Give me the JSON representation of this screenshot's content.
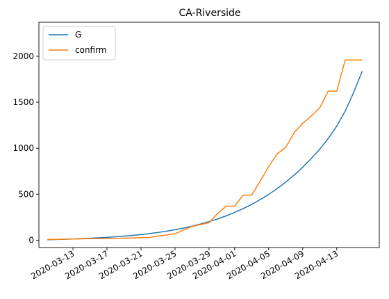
{
  "chart_data": {
    "type": "line",
    "title": "CA-Riverside",
    "xlabel": "",
    "ylabel": "",
    "x_start": "2020-03-10",
    "x_ticks": [
      "2020-03-13",
      "2020-03-17",
      "2020-03-21",
      "2020-03-25",
      "2020-03-29",
      "2020-04-01",
      "2020-04-05",
      "2020-04-09",
      "2020-04-13"
    ],
    "y_ticks": [
      0,
      500,
      1000,
      1500,
      2000
    ],
    "ylim": [
      -80,
      2370
    ],
    "xlim": [
      "2020-03-09",
      "2020-04-18"
    ],
    "grid": false,
    "legend_position": "top-left",
    "series": [
      {
        "name": "G",
        "color": "#1f77b4",
        "x": [
          "2020-03-10",
          "2020-03-11",
          "2020-03-12",
          "2020-03-13",
          "2020-03-14",
          "2020-03-15",
          "2020-03-16",
          "2020-03-17",
          "2020-03-18",
          "2020-03-19",
          "2020-03-20",
          "2020-03-21",
          "2020-03-22",
          "2020-03-23",
          "2020-03-24",
          "2020-03-25",
          "2020-03-26",
          "2020-03-27",
          "2020-03-28",
          "2020-03-29",
          "2020-03-30",
          "2020-03-31",
          "2020-04-01",
          "2020-04-02",
          "2020-04-03",
          "2020-04-04",
          "2020-04-05",
          "2020-04-06",
          "2020-04-07",
          "2020-04-08",
          "2020-04-09",
          "2020-04-10",
          "2020-04-11",
          "2020-04-12",
          "2020-04-13",
          "2020-04-14",
          "2020-04-15",
          "2020-04-16"
        ],
        "values": [
          5,
          7,
          10,
          13,
          17,
          21,
          26,
          31,
          37,
          44,
          52,
          61,
          72,
          84,
          98,
          114,
          132,
          153,
          176,
          202,
          231,
          264,
          302,
          343,
          389,
          441,
          498,
          561,
          631,
          708,
          793,
          887,
          990,
          1106,
          1240,
          1404,
          1609,
          1839
        ]
      },
      {
        "name": "confirm",
        "color": "#ff7f0e",
        "x": [
          "2020-03-10",
          "2020-03-11",
          "2020-03-12",
          "2020-03-13",
          "2020-03-14",
          "2020-03-15",
          "2020-03-16",
          "2020-03-17",
          "2020-03-18",
          "2020-03-19",
          "2020-03-20",
          "2020-03-21",
          "2020-03-22",
          "2020-03-23",
          "2020-03-24",
          "2020-03-25",
          "2020-03-26",
          "2020-03-27",
          "2020-03-28",
          "2020-03-29",
          "2020-03-30",
          "2020-03-31",
          "2020-04-01",
          "2020-04-02",
          "2020-04-03",
          "2020-04-04",
          "2020-04-05",
          "2020-04-06",
          "2020-04-07",
          "2020-04-08",
          "2020-04-09",
          "2020-04-10",
          "2020-04-11",
          "2020-04-12",
          "2020-04-13",
          "2020-04-14",
          "2020-04-15",
          "2020-04-16"
        ],
        "values": [
          8,
          9,
          11,
          13,
          15,
          17,
          17,
          18,
          19,
          22,
          25,
          28,
          30,
          45,
          55,
          70,
          110,
          150,
          170,
          190,
          290,
          370,
          370,
          490,
          490,
          640,
          800,
          940,
          1010,
          1170,
          1270,
          1350,
          1440,
          1620,
          1620,
          1960,
          1960,
          1960
        ]
      }
    ]
  }
}
